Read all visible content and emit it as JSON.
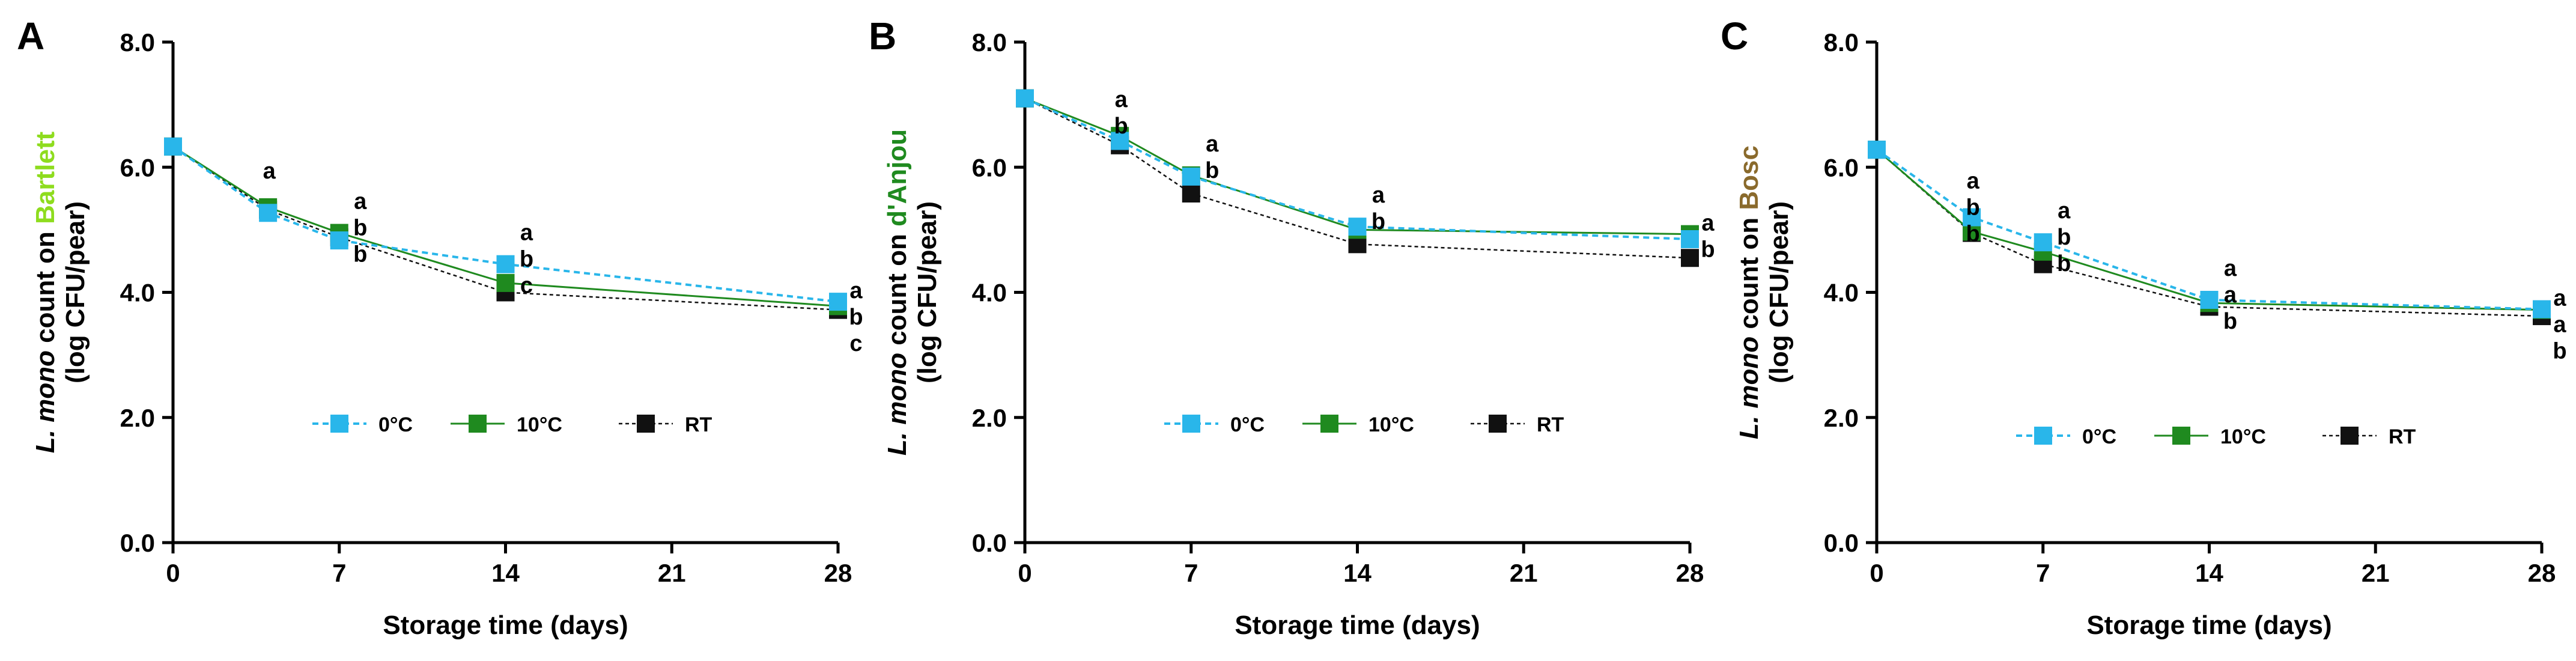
{
  "figure": {
    "panels": [
      "A",
      "B",
      "C"
    ]
  },
  "colors": {
    "0C": "#29b6ea",
    "10C": "#1f8a1f",
    "RT": "#111111",
    "Bartlett": "#8edc1e",
    "d'Anjou": "#1f8a1f",
    "Bosc": "#8a6a2c",
    "axis": "#000000"
  },
  "chart_data": [
    {
      "panel": "A",
      "type": "line",
      "xlabel": "Storage time (days)",
      "ylabel_italic": "L. mono",
      "ylabel_mid": " count on ",
      "ylabel_cultivar": "Bartlett",
      "ylabel_line2": "(log CFU/pear)",
      "x_ticks": [
        0,
        7,
        14,
        21,
        28
      ],
      "y_ticks": [
        "0.0",
        "2.0",
        "4.0",
        "6.0",
        "8.0"
      ],
      "xlim": [
        0,
        28
      ],
      "ylim": [
        0,
        8
      ],
      "series": [
        {
          "name": "0°C",
          "key": "0C",
          "x": [
            0,
            4,
            7,
            14,
            28
          ],
          "values": [
            6.33,
            5.27,
            4.83,
            4.45,
            3.85
          ]
        },
        {
          "name": "10°C",
          "key": "10C",
          "x": [
            0,
            4,
            7,
            14,
            28
          ],
          "values": [
            6.33,
            5.36,
            4.95,
            4.15,
            3.78
          ]
        },
        {
          "name": "RT",
          "key": "RT",
          "x": [
            0,
            4,
            7,
            14,
            28
          ],
          "values": [
            6.33,
            5.32,
            4.88,
            4.0,
            3.72
          ]
        }
      ],
      "significance": [
        {
          "x": 4,
          "letters": [
            "a"
          ]
        },
        {
          "x": 7,
          "letters": [
            "a",
            "b",
            "b"
          ]
        },
        {
          "x": 14,
          "letters": [
            "a",
            "b",
            "c"
          ]
        },
        {
          "x": 28,
          "letters": [
            "a",
            "b",
            "c"
          ]
        }
      ]
    },
    {
      "panel": "B",
      "type": "line",
      "xlabel": "Storage time (days)",
      "ylabel_italic": "L. mono",
      "ylabel_mid": " count on ",
      "ylabel_cultivar": "d'Anjou",
      "ylabel_line2": "(log CFU/pear)",
      "x_ticks": [
        0,
        7,
        14,
        21,
        28
      ],
      "y_ticks": [
        "0.0",
        "2.0",
        "4.0",
        "6.0",
        "8.0"
      ],
      "xlim": [
        0,
        28
      ],
      "ylim": [
        0,
        8
      ],
      "series": [
        {
          "name": "0°C",
          "key": "0C",
          "x": [
            0,
            4,
            7,
            14,
            28
          ],
          "values": [
            7.1,
            6.42,
            5.85,
            5.05,
            4.85
          ]
        },
        {
          "name": "10°C",
          "key": "10C",
          "x": [
            0,
            4,
            7,
            14,
            28
          ],
          "values": [
            7.1,
            6.5,
            5.87,
            5.0,
            4.93
          ]
        },
        {
          "name": "RT",
          "key": "RT",
          "x": [
            0,
            4,
            7,
            14,
            28
          ],
          "values": [
            7.1,
            6.35,
            5.58,
            4.77,
            4.55
          ]
        }
      ],
      "significance": [
        {
          "x": 4,
          "letters": [
            "a",
            "b"
          ]
        },
        {
          "x": 7,
          "letters": [
            "a",
            "b"
          ]
        },
        {
          "x": 14,
          "letters": [
            "a",
            "b"
          ]
        },
        {
          "x": 28,
          "letters": [
            "a",
            "b"
          ]
        }
      ]
    },
    {
      "panel": "C",
      "type": "line",
      "xlabel": "Storage time (days)",
      "ylabel_italic": "L. mono",
      "ylabel_mid": " count on ",
      "ylabel_cultivar": "Bosc",
      "ylabel_line2": "(log CFU/pear)",
      "x_ticks": [
        0,
        7,
        14,
        21,
        28
      ],
      "y_ticks": [
        "0.0",
        "2.0",
        "4.0",
        "6.0",
        "8.0"
      ],
      "xlim": [
        0,
        28
      ],
      "ylim": [
        0,
        8
      ],
      "series": [
        {
          "name": "0°C",
          "key": "0C",
          "x": [
            0,
            4,
            7,
            14,
            28
          ],
          "values": [
            6.28,
            5.2,
            4.8,
            3.88,
            3.73
          ]
        },
        {
          "name": "10°C",
          "key": "10C",
          "x": [
            0,
            4,
            7,
            14,
            28
          ],
          "values": [
            6.28,
            4.97,
            4.65,
            3.83,
            3.72
          ]
        },
        {
          "name": "RT",
          "key": "RT",
          "x": [
            0,
            4,
            7,
            14,
            28
          ],
          "values": [
            6.28,
            4.95,
            4.45,
            3.77,
            3.62
          ]
        }
      ],
      "significance": [
        {
          "x": 4,
          "letters": [
            "a",
            "b",
            "b"
          ]
        },
        {
          "x": 7,
          "letters": [
            "a",
            "b",
            "b"
          ]
        },
        {
          "x": 14,
          "letters": [
            "a",
            "a",
            "b"
          ]
        },
        {
          "x": 28,
          "letters": [
            "a",
            "a",
            "b"
          ]
        }
      ]
    }
  ]
}
